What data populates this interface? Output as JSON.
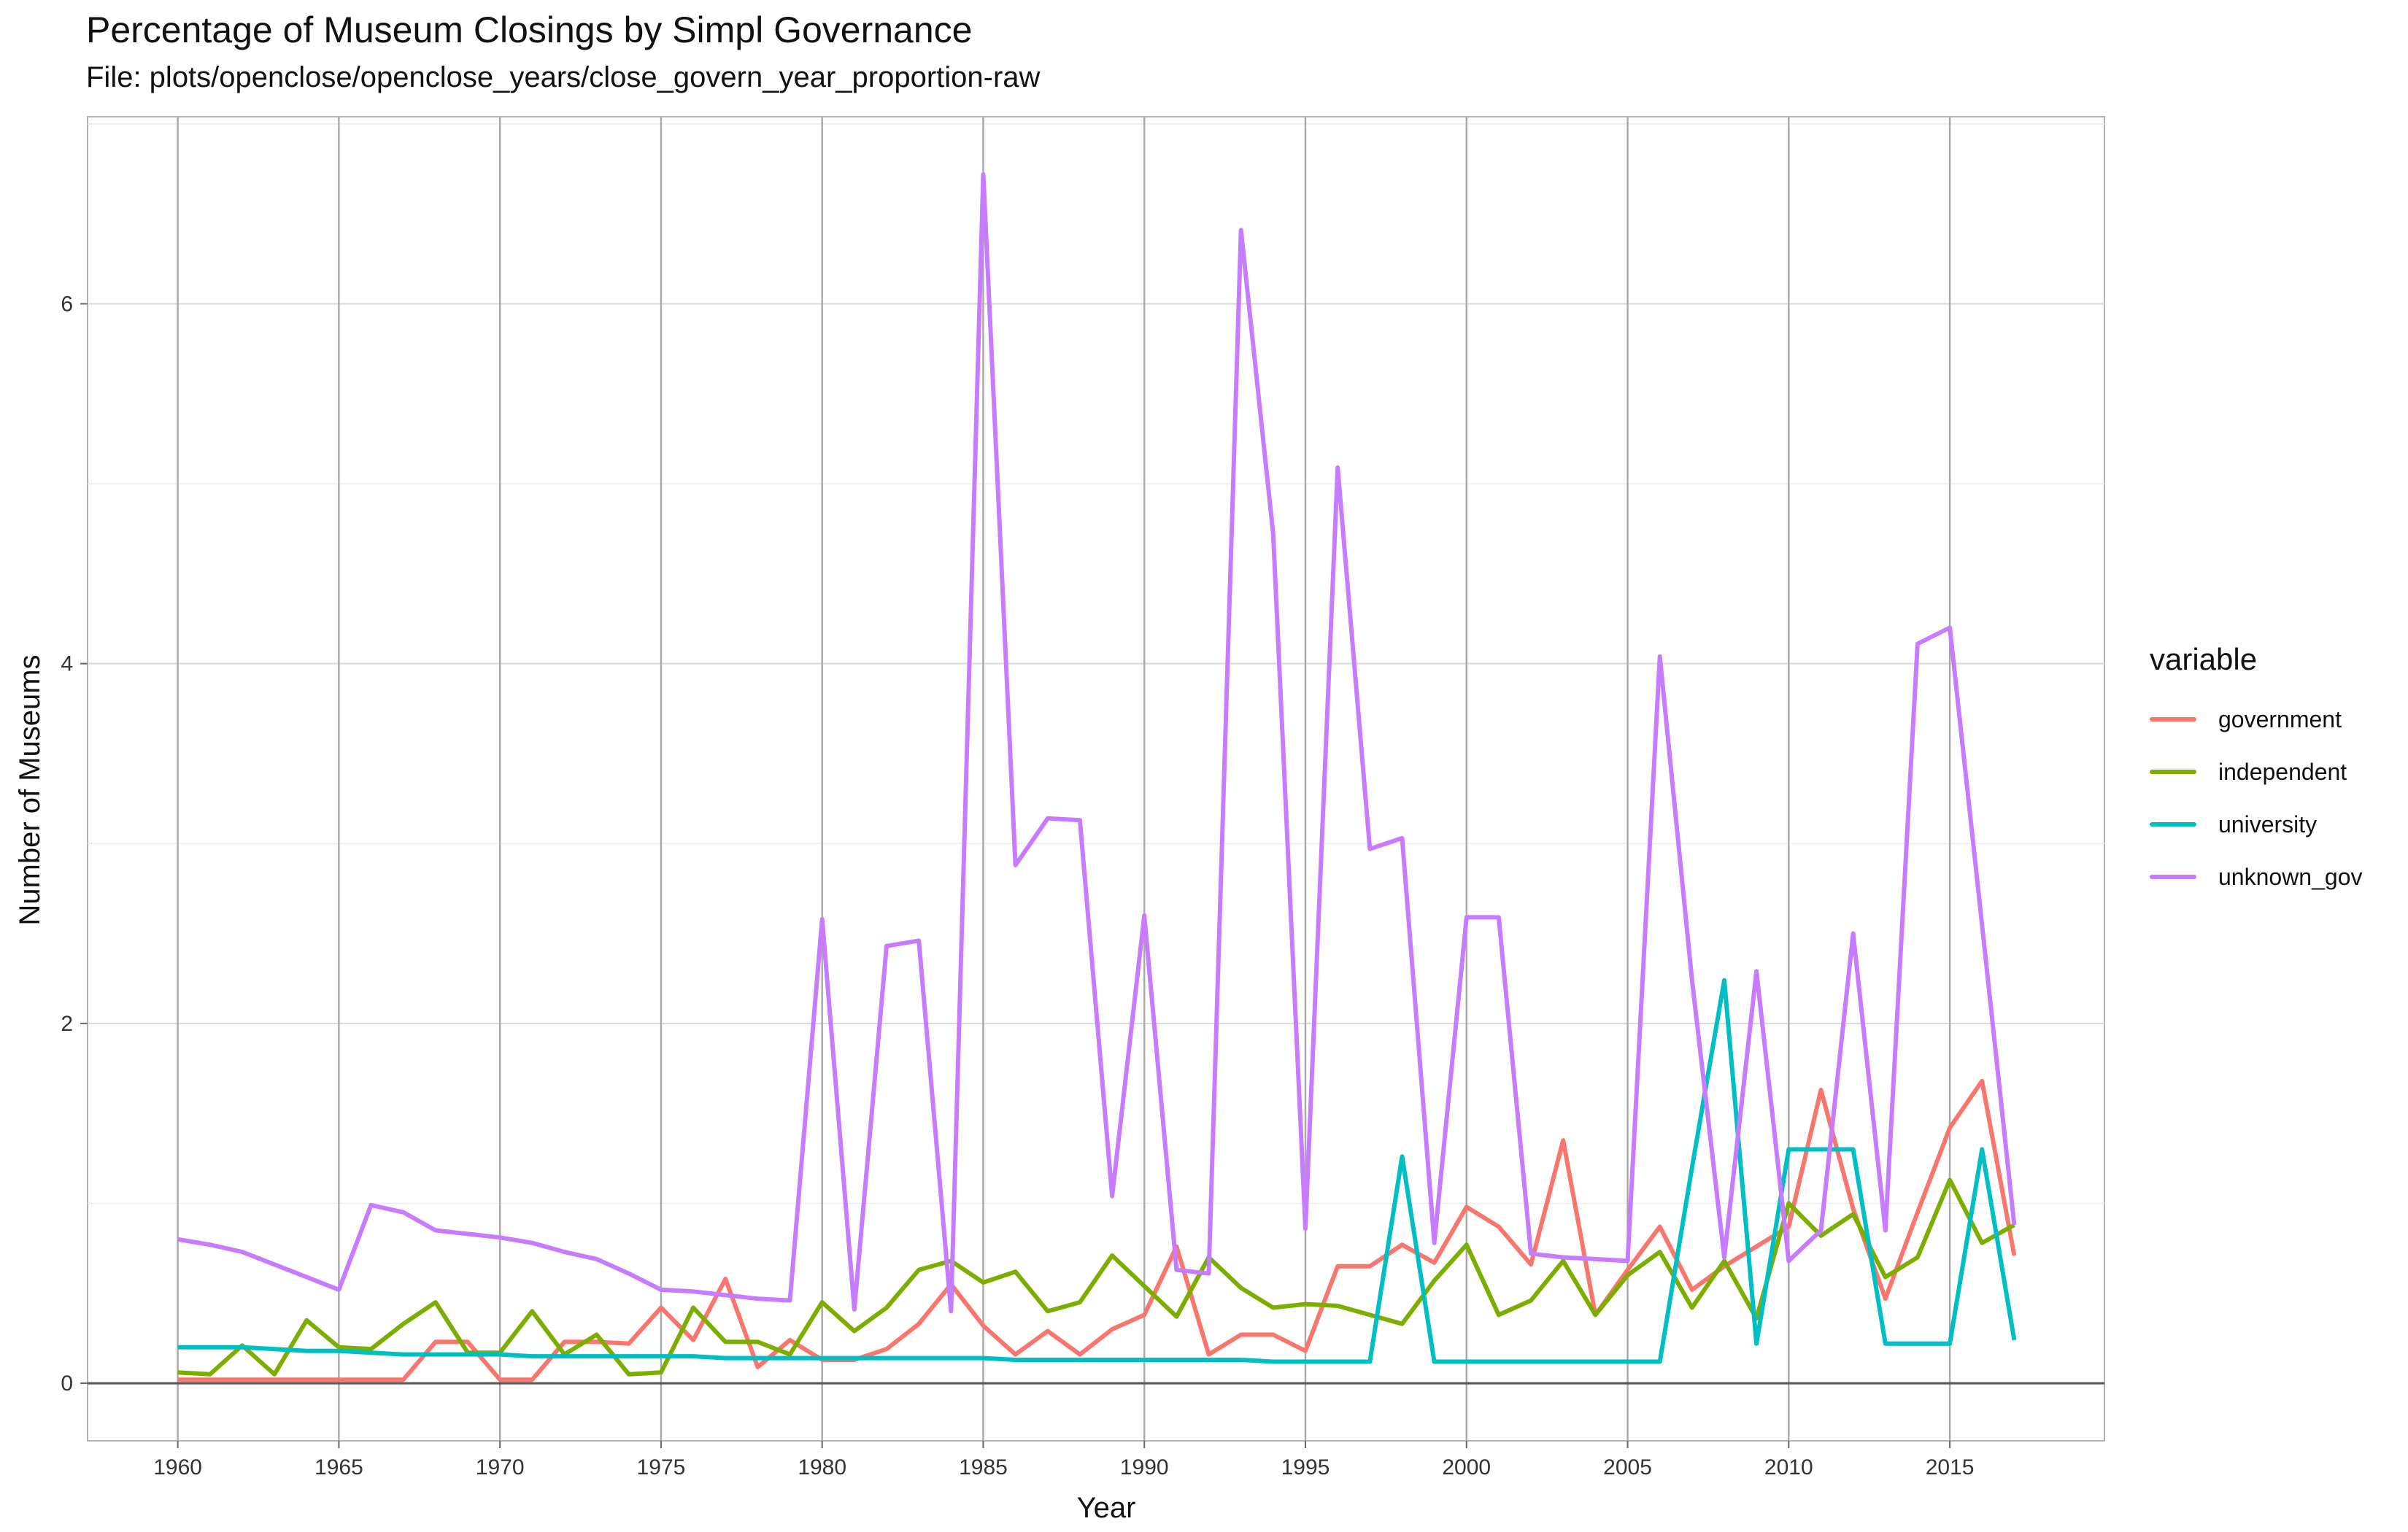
{
  "chart_data": {
    "type": "line",
    "title": "Percentage of Museum Closings by Simpl Governance",
    "subtitle": "File: plots/openclose/openclose_years/close_govern_year_proportion-raw",
    "xlabel": "Year",
    "ylabel": "Number of Museums",
    "xlim": [
      1957.2,
      2019.8
    ],
    "ylim": [
      -0.32,
      7.04
    ],
    "x_ticks": [
      1960,
      1965,
      1970,
      1975,
      1980,
      1985,
      1990,
      1995,
      2000,
      2005,
      2010,
      2015
    ],
    "y_ticks": [
      0,
      2,
      4,
      6
    ],
    "grid": true,
    "legend_position": "right",
    "legend_title": "variable",
    "x": [
      1960,
      1961,
      1962,
      1963,
      1964,
      1965,
      1966,
      1967,
      1968,
      1969,
      1970,
      1971,
      1972,
      1973,
      1974,
      1975,
      1976,
      1977,
      1978,
      1979,
      1980,
      1981,
      1982,
      1983,
      1984,
      1985,
      1986,
      1987,
      1988,
      1989,
      1990,
      1991,
      1992,
      1993,
      1994,
      1995,
      1996,
      1997,
      1998,
      1999,
      2000,
      2001,
      2002,
      2003,
      2004,
      2005,
      2006,
      2007,
      2008,
      2009,
      2010,
      2011,
      2012,
      2013,
      2014,
      2015,
      2016,
      2017
    ],
    "series": [
      {
        "name": "government",
        "color": "#F8766D",
        "values": [
          0.02,
          0.02,
          0.02,
          0.02,
          0.02,
          0.02,
          0.02,
          0.02,
          0.23,
          0.23,
          0.02,
          0.02,
          0.23,
          0.23,
          0.22,
          0.42,
          0.24,
          0.58,
          0.09,
          0.24,
          0.13,
          0.13,
          0.19,
          0.33,
          0.55,
          0.32,
          0.16,
          0.29,
          0.16,
          0.3,
          0.38,
          0.76,
          0.16,
          0.27,
          0.27,
          0.18,
          0.65,
          0.65,
          0.77,
          0.67,
          0.98,
          0.87,
          0.66,
          1.35,
          0.38,
          0.63,
          0.87,
          0.52,
          0.65,
          0.76,
          0.87,
          1.63,
          0.97,
          0.47,
          0.95,
          1.42,
          1.68,
          0.71
        ]
      },
      {
        "name": "independent",
        "color": "#7CAE00",
        "values": [
          0.06,
          0.05,
          0.21,
          0.05,
          0.35,
          0.2,
          0.19,
          0.33,
          0.45,
          0.17,
          0.17,
          0.4,
          0.16,
          0.27,
          0.05,
          0.06,
          0.42,
          0.23,
          0.23,
          0.16,
          0.45,
          0.29,
          0.42,
          0.63,
          0.68,
          0.56,
          0.62,
          0.4,
          0.45,
          0.71,
          0.54,
          0.37,
          0.7,
          0.53,
          0.42,
          0.44,
          0.43,
          0.38,
          0.33,
          0.57,
          0.77,
          0.38,
          0.46,
          0.68,
          0.38,
          0.6,
          0.73,
          0.42,
          0.68,
          0.36,
          1.0,
          0.82,
          0.94,
          0.59,
          0.7,
          1.13,
          0.78,
          0.88
        ]
      },
      {
        "name": "university",
        "color": "#00BFC4",
        "values": [
          0.2,
          0.2,
          0.2,
          0.19,
          0.18,
          0.18,
          0.17,
          0.16,
          0.16,
          0.16,
          0.16,
          0.15,
          0.15,
          0.15,
          0.15,
          0.15,
          0.15,
          0.14,
          0.14,
          0.14,
          0.14,
          0.14,
          0.14,
          0.14,
          0.14,
          0.14,
          0.13,
          0.13,
          0.13,
          0.13,
          0.13,
          0.13,
          0.13,
          0.13,
          0.12,
          0.12,
          0.12,
          0.12,
          1.26,
          0.12,
          0.12,
          0.12,
          0.12,
          0.12,
          0.12,
          0.12,
          0.12,
          1.2,
          2.24,
          0.22,
          1.3,
          1.3,
          1.3,
          0.22,
          0.22,
          0.22,
          1.3,
          0.24
        ]
      },
      {
        "name": "unknown_gov",
        "color": "#C77CFF",
        "values": [
          0.8,
          0.77,
          0.73,
          0.66,
          0.59,
          0.52,
          0.99,
          0.95,
          0.85,
          0.83,
          0.81,
          0.78,
          0.73,
          0.69,
          0.61,
          0.52,
          0.51,
          0.49,
          0.47,
          0.46,
          2.58,
          0.41,
          2.43,
          2.46,
          0.4,
          6.72,
          2.88,
          3.14,
          3.13,
          1.04,
          2.6,
          0.63,
          0.61,
          6.41,
          4.72,
          0.86,
          5.09,
          2.97,
          3.03,
          0.78,
          2.59,
          2.59,
          0.72,
          0.7,
          0.69,
          0.68,
          4.04,
          2.24,
          0.7,
          2.29,
          0.68,
          0.85,
          2.5,
          0.85,
          4.11,
          4.2,
          2.55,
          0.88
        ]
      }
    ]
  }
}
